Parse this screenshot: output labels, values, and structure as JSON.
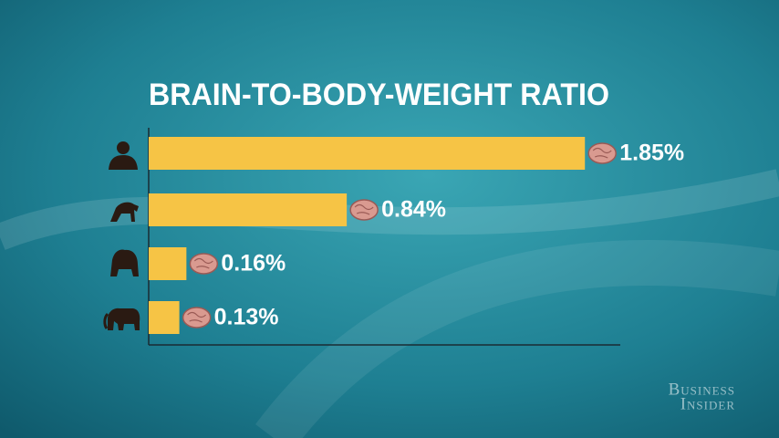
{
  "chart_data": {
    "type": "hbar",
    "title": "BRAIN-TO-BODY-WEIGHT RATIO",
    "categories": [
      null,
      null,
      null,
      null
    ],
    "values": [
      1.85,
      0.84,
      0.16,
      0.13
    ],
    "value_labels": [
      "1.85%",
      "0.84%",
      "0.16%",
      "0.13%"
    ],
    "color": "#f6c445",
    "xlim": [
      0,
      2
    ],
    "watermark": [
      "Business",
      "Insider"
    ]
  }
}
